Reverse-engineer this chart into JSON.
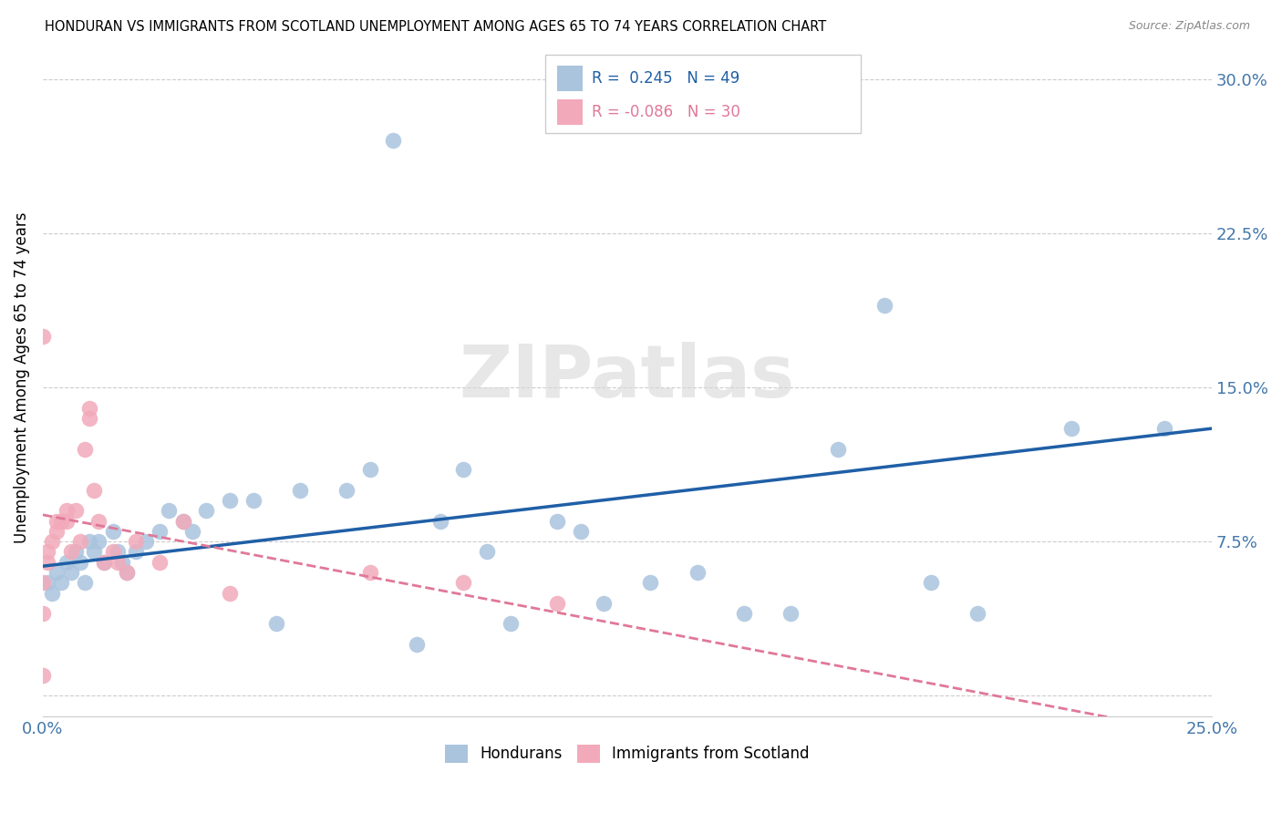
{
  "title": "HONDURAN VS IMMIGRANTS FROM SCOTLAND UNEMPLOYMENT AMONG AGES 65 TO 74 YEARS CORRELATION CHART",
  "source": "Source: ZipAtlas.com",
  "ylabel": "Unemployment Among Ages 65 to 74 years",
  "xlim": [
    0.0,
    0.25
  ],
  "ylim": [
    -0.01,
    0.32
  ],
  "xticks": [
    0.0,
    0.05,
    0.1,
    0.15,
    0.2,
    0.25
  ],
  "xticklabels": [
    "0.0%",
    "",
    "",
    "",
    "",
    "25.0%"
  ],
  "yticks": [
    0.0,
    0.075,
    0.15,
    0.225,
    0.3
  ],
  "yticklabels": [
    "",
    "7.5%",
    "15.0%",
    "22.5%",
    "30.0%"
  ],
  "blue_color": "#aac4de",
  "pink_color": "#f2aaba",
  "blue_line_color": "#1f5fa6",
  "pink_line_color": "#e07898",
  "blue_R": 0.245,
  "blue_N": 49,
  "pink_R": -0.086,
  "pink_N": 30,
  "watermark": "ZIPatlas",
  "blue_scatter_x": [
    0.001,
    0.002,
    0.003,
    0.004,
    0.005,
    0.006,
    0.007,
    0.008,
    0.009,
    0.01,
    0.011,
    0.012,
    0.013,
    0.015,
    0.016,
    0.017,
    0.018,
    0.02,
    0.022,
    0.025,
    0.027,
    0.03,
    0.032,
    0.035,
    0.04,
    0.045,
    0.05,
    0.055,
    0.065,
    0.07,
    0.075,
    0.08,
    0.085,
    0.09,
    0.095,
    0.1,
    0.11,
    0.115,
    0.12,
    0.13,
    0.14,
    0.15,
    0.16,
    0.17,
    0.18,
    0.19,
    0.2,
    0.22,
    0.24
  ],
  "blue_scatter_y": [
    0.055,
    0.05,
    0.06,
    0.055,
    0.065,
    0.06,
    0.07,
    0.065,
    0.055,
    0.075,
    0.07,
    0.075,
    0.065,
    0.08,
    0.07,
    0.065,
    0.06,
    0.07,
    0.075,
    0.08,
    0.09,
    0.085,
    0.08,
    0.09,
    0.095,
    0.095,
    0.035,
    0.1,
    0.1,
    0.11,
    0.27,
    0.025,
    0.085,
    0.11,
    0.07,
    0.035,
    0.085,
    0.08,
    0.045,
    0.055,
    0.06,
    0.04,
    0.04,
    0.12,
    0.19,
    0.055,
    0.04,
    0.13,
    0.13
  ],
  "pink_scatter_x": [
    0.0,
    0.0,
    0.0,
    0.001,
    0.001,
    0.002,
    0.003,
    0.003,
    0.004,
    0.005,
    0.005,
    0.006,
    0.007,
    0.008,
    0.009,
    0.01,
    0.01,
    0.011,
    0.012,
    0.013,
    0.015,
    0.016,
    0.018,
    0.02,
    0.025,
    0.03,
    0.04,
    0.07,
    0.09,
    0.11
  ],
  "pink_scatter_y": [
    0.04,
    0.055,
    0.01,
    0.065,
    0.07,
    0.075,
    0.08,
    0.085,
    0.085,
    0.09,
    0.085,
    0.07,
    0.09,
    0.075,
    0.12,
    0.135,
    0.14,
    0.1,
    0.085,
    0.065,
    0.07,
    0.065,
    0.06,
    0.075,
    0.065,
    0.085,
    0.05,
    0.06,
    0.055,
    0.045
  ],
  "pink_outlier_x": [
    0.0
  ],
  "pink_outlier_y": [
    0.175
  ]
}
